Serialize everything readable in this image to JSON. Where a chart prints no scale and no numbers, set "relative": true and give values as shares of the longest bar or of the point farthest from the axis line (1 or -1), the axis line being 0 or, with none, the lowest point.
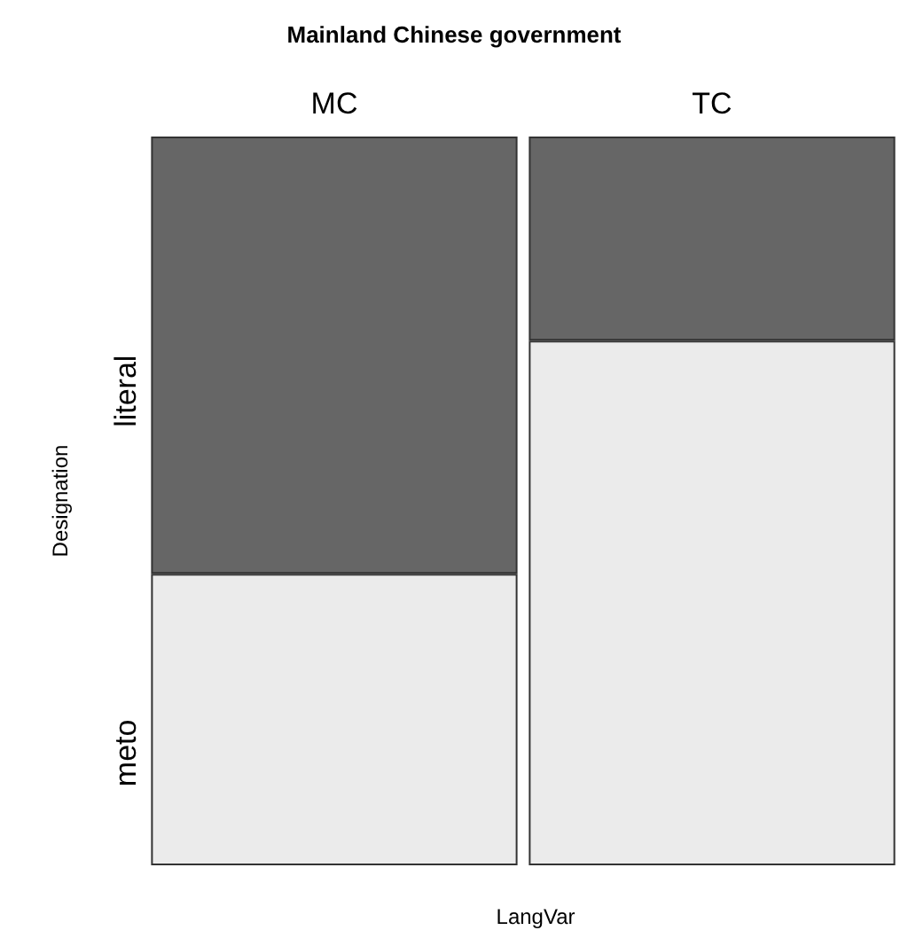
{
  "chart_data": {
    "type": "bar",
    "title": "Mainland Chinese government",
    "xlabel": "LangVar",
    "ylabel": "Designation",
    "categories": [
      "MC",
      "TC"
    ],
    "relative": true,
    "stacked": true,
    "series": [
      {
        "name": "meto",
        "color": "#ebebeb",
        "values": [
          0.4,
          0.72
        ]
      },
      {
        "name": "literal",
        "color": "#666666",
        "values": [
          0.6,
          0.28
        ]
      }
    ]
  }
}
